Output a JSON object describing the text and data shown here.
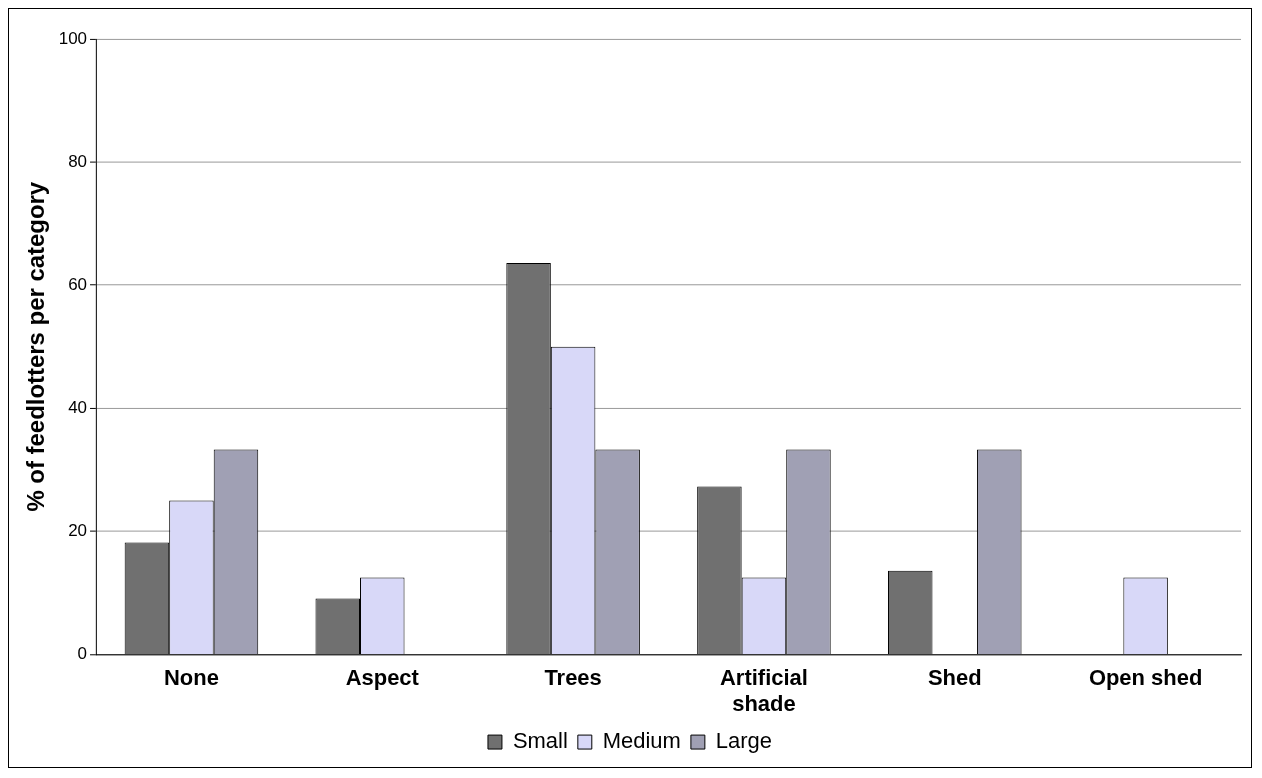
{
  "chart_data": {
    "type": "bar",
    "ylabel": "% of feedlotters per category",
    "categories": [
      "None",
      "Aspect",
      "Trees",
      "Artificial shade",
      "Shed",
      "Open shed"
    ],
    "series": [
      {
        "name": "Small",
        "color": "#707070",
        "values": [
          18.2,
          9.1,
          63.6,
          27.3,
          13.6,
          0
        ]
      },
      {
        "name": "Medium",
        "color": "#d8d8f8",
        "values": [
          25,
          12.5,
          50,
          12.5,
          0,
          12.5
        ]
      },
      {
        "name": "Large",
        "color": "#a0a0b4",
        "values": [
          33.3,
          0,
          33.3,
          33.3,
          33.3,
          0
        ]
      }
    ],
    "ylim": [
      0,
      100
    ],
    "yticks": [
      0,
      20,
      40,
      60,
      80,
      100
    ],
    "grid": "y",
    "legend": "bottom"
  }
}
